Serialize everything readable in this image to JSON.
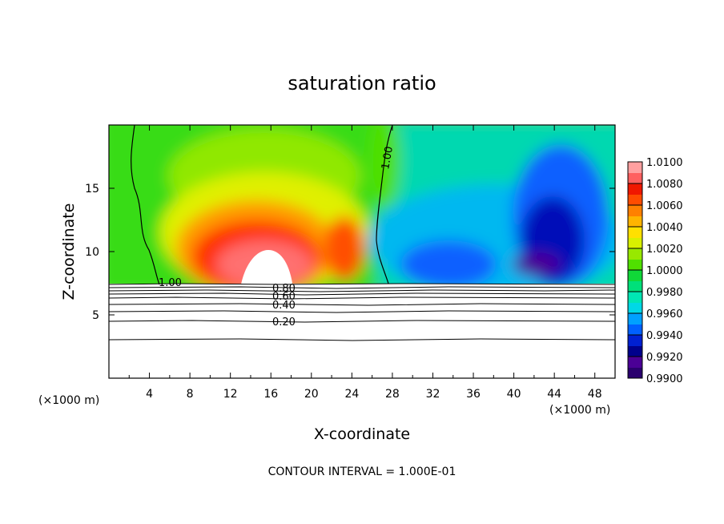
{
  "chart_data": {
    "type": "heatmap",
    "title": "saturation ratio",
    "xlabel": "X-coordinate",
    "ylabel": "Z-coordinate",
    "x_unit_left": "(×1000 m)",
    "x_unit_right": "(×1000 m)",
    "xlim": [
      0,
      50
    ],
    "ylim": [
      0,
      20
    ],
    "xticks": [
      4,
      8,
      12,
      16,
      20,
      24,
      28,
      32,
      36,
      40,
      44,
      48
    ],
    "yticks": [
      5,
      10,
      15
    ],
    "footer": "CONTOUR INTERVAL = 1.000E-01",
    "colorbar": {
      "min": 0.99,
      "max": 1.01,
      "labels": [
        "1.0100",
        "1.0080",
        "1.0060",
        "1.0040",
        "1.0020",
        "1.0000",
        "0.9980",
        "0.9960",
        "0.9940",
        "0.9920",
        "0.9900"
      ],
      "colors": [
        "#2a006e",
        "#4b0096",
        "#00008c",
        "#0020d2",
        "#0060ff",
        "#00a0ff",
        "#00d8e6",
        "#00e6b4",
        "#00e07a",
        "#10d838",
        "#50e000",
        "#98e800",
        "#d8f000",
        "#ffe000",
        "#ffb400",
        "#ff8000",
        "#ff4c00",
        "#f01800",
        "#ff6060",
        "#ffa0a0"
      ]
    },
    "contours": [
      {
        "label": "1.00",
        "level": 1.0
      },
      {
        "label": "0.80",
        "level": 0.8
      },
      {
        "label": "0.60",
        "level": 0.6
      },
      {
        "label": "0.40",
        "level": 0.4
      },
      {
        "label": "0.20",
        "level": 0.2
      }
    ],
    "surface_z": 7.5
  }
}
